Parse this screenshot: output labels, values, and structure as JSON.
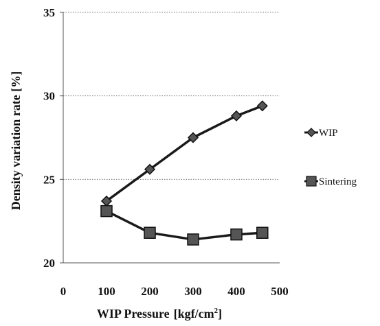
{
  "chart_data": {
    "type": "line",
    "xlabel": "WIP Pressure",
    "xlabel_unit_prefix": "[kgf/cm",
    "xlabel_unit_sup": "2",
    "xlabel_unit_suffix": "]",
    "ylabel": "Density variation rate [%]",
    "xlim": [
      0,
      500
    ],
    "ylim": [
      20,
      35
    ],
    "x_ticks": [
      0,
      100,
      200,
      300,
      400,
      500
    ],
    "y_ticks": [
      20,
      25,
      30,
      35
    ],
    "grid": "horizontal",
    "legend_position": "right",
    "series": [
      {
        "name": "WIP",
        "marker": "diamond",
        "color": "#1a1a1a",
        "x": [
          100,
          200,
          300,
          400,
          460
        ],
        "y": [
          23.7,
          25.6,
          27.5,
          28.8,
          29.4
        ]
      },
      {
        "name": "Sintering",
        "marker": "square",
        "color": "#1a1a1a",
        "x": [
          100,
          200,
          300,
          400,
          460
        ],
        "y": [
          23.1,
          21.8,
          21.4,
          21.7,
          21.8
        ]
      }
    ]
  }
}
